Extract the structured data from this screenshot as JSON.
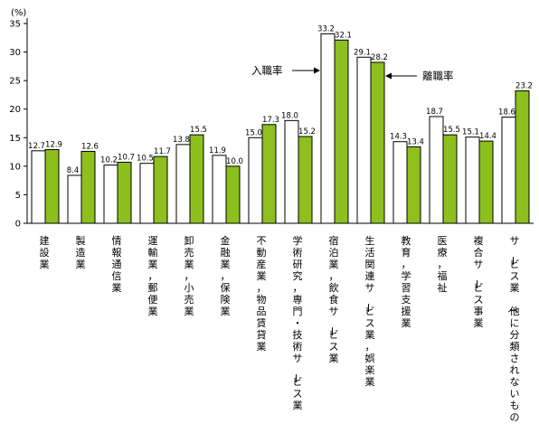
{
  "chart_data": {
    "type": "bar",
    "yunit": "(%)",
    "ylim": [
      0,
      35
    ],
    "yticks": [
      0,
      5,
      10,
      15,
      20,
      25,
      30,
      35
    ],
    "categories": [
      "建設業",
      "製造業",
      "情報通信業",
      "運輸業，郵便業",
      "卸売業，小売業",
      "金融業，保険業",
      "不動産業，物品賃貸業",
      "学術研究，専門・技術サービス業",
      "宿泊業，飲食サービス業",
      "生活関連サービス業，娯楽業",
      "教育，学習支援業",
      "医療，福祉",
      "複合サービス事業",
      "サービス業（他に分類されないもの）"
    ],
    "series": [
      {
        "name": "入職率",
        "color": "#ffffff",
        "values": [
          12.7,
          8.4,
          10.2,
          10.5,
          13.8,
          11.9,
          15.0,
          18.0,
          33.2,
          29.1,
          14.3,
          18.7,
          15.1,
          18.6
        ]
      },
      {
        "name": "離職率",
        "color": "#8dbf1f",
        "values": [
          12.9,
          12.6,
          10.7,
          11.7,
          15.5,
          10.0,
          17.3,
          15.2,
          32.1,
          28.2,
          13.4,
          15.5,
          14.4,
          23.2
        ]
      }
    ],
    "annotations": {
      "entry_label": "入職率",
      "exit_label": "離職率"
    },
    "grid": false,
    "legend": "annotated arrows"
  }
}
